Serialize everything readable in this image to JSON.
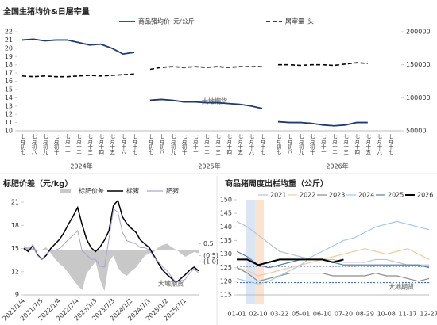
{
  "watermark": "大地期货",
  "chart_data": [
    {
      "type": "line",
      "title": "全国生猪均价&日屠宰量",
      "groups": [
        "2024年",
        "2025年",
        "2026年"
      ],
      "categories": [
        "七月初七",
        "七月初八",
        "七月初九",
        "七月初十",
        "七月十一",
        "七月十二",
        "七月十三",
        "七月十四",
        "七月十五",
        "七月十六",
        "七月十七",
        "七月初七",
        "七月初八",
        "七月初九",
        "七月初十",
        "七月十一",
        "七月十二",
        "七月十三",
        "七月十四",
        "七月十五",
        "七月十六",
        "七月十七",
        "七月初七",
        "七月初八",
        "七月初九",
        "七月初十",
        "七月十一",
        "七月十二",
        "七月十三",
        "七月十四",
        "七月十五",
        "七月十六",
        "七月十七"
      ],
      "series": [
        {
          "name": "商品猪均价_元/公斤",
          "color": "#1f3a6e",
          "dash": false,
          "values": [
            21.0,
            21.1,
            20.9,
            21.0,
            21.0,
            20.7,
            20.4,
            20.5,
            20.0,
            19.3,
            19.5,
            13.7,
            13.8,
            13.7,
            13.5,
            13.5,
            13.4,
            13.4,
            13.3,
            13.2,
            13.0,
            12.7,
            11.1,
            11.0,
            11.0,
            10.9,
            10.7,
            10.6,
            10.7,
            11.0,
            11.0,
            null,
            null
          ]
        },
        {
          "name": "屠宰量_头",
          "color": "#000000",
          "dash": true,
          "axis": "y2",
          "values": [
            133000,
            132000,
            133000,
            132000,
            132000,
            133000,
            134000,
            133000,
            134000,
            135000,
            136000,
            143000,
            146000,
            147000,
            146000,
            147000,
            146000,
            147000,
            146000,
            147000,
            147000,
            147000,
            150000,
            150000,
            149000,
            150000,
            150000,
            149000,
            151000,
            153000,
            152000,
            null,
            null
          ]
        }
      ],
      "ylim": [
        10,
        22
      ],
      "yticks": [
        10,
        11,
        12,
        13,
        14,
        15,
        16,
        17,
        18,
        19,
        20,
        21,
        22
      ],
      "y2lim": [
        50000,
        200000
      ],
      "y2ticks": [
        50000,
        100000,
        150000,
        200000
      ]
    },
    {
      "type": "line",
      "title": "标肥价差（元/kg）",
      "categories": [
        "2021/1/4",
        null,
        null,
        null,
        "2021/7/5",
        null,
        null,
        null,
        "2022/1/4",
        null,
        null,
        null,
        "2022/7/4",
        null,
        null,
        null,
        "2023/1/3",
        null,
        null,
        null,
        "2023/7/3",
        null,
        null,
        null,
        "2024/1/2",
        null,
        null,
        null,
        "2024/7/1",
        null,
        null,
        null,
        "2025/1/2",
        null,
        null,
        null,
        "2025/7/1",
        null,
        null,
        null
      ],
      "series": [
        {
          "name": "标肥价差",
          "color": "#c8c8c8",
          "style": "area",
          "axis": "y2",
          "values": [
            0.3,
            0.2,
            0.1,
            -0.1,
            0,
            0.2,
            -0.3,
            -0.8,
            -1.2,
            -1.5,
            -2.0,
            -2.5,
            -3.0,
            -3.4,
            -2.0,
            -1.5,
            -1.0,
            -2.5,
            -3.5,
            -1.0,
            -0.5,
            -1.5,
            -2.0,
            -2.2,
            -1.8,
            -1.5,
            -1.0,
            -0.5,
            -0.3,
            -0.2,
            0.2,
            0.4,
            0.5,
            0.2,
            0,
            -0.3,
            -0.6,
            -0.4,
            -0.2,
            -0.3
          ]
        },
        {
          "name": "标猪",
          "color": "#000000",
          "values": [
            15,
            14.6,
            15.4,
            14.2,
            13.6,
            14.1,
            15,
            15.6,
            16.2,
            17.1,
            18.2,
            19.2,
            20.3,
            18.1,
            16.2,
            15.1,
            14.6,
            15.2,
            16.1,
            17.3,
            20.6,
            21.2,
            19.1,
            18.2,
            17.6,
            17.1,
            16.1,
            15.6,
            15.1,
            14.1,
            13.1,
            12.2,
            11.6,
            11.1,
            10.6,
            11.1,
            11.6,
            12.2,
            12.6,
            12.1
          ]
        },
        {
          "name": "肥猪",
          "color": "#a9a3d6",
          "values": [
            15.3,
            14.8,
            15.5,
            14.1,
            13.6,
            14.3,
            14.7,
            14.8,
            15.0,
            15.6,
            16.2,
            16.7,
            17.3,
            14.7,
            14.2,
            13.6,
            13.6,
            12.7,
            12.6,
            16.3,
            20.1,
            19.7,
            17.1,
            16.0,
            15.8,
            15.6,
            15.1,
            15.1,
            14.8,
            13.9,
            13.3,
            12.6,
            12.1,
            11.3,
            10.6,
            10.8,
            11.0,
            11.8,
            12.4,
            11.8
          ]
        }
      ],
      "ylim": [
        9,
        21
      ],
      "yticks": [
        9,
        12,
        15,
        18,
        21
      ],
      "y2lim": [
        -3.8,
        4
      ],
      "y2ticks": [
        {
          "value": 0.5,
          "label": "0.5"
        },
        {
          "value": -0.5,
          "label": "(0.5)"
        },
        {
          "value": -1.0,
          "label": "(1.0)"
        }
      ]
    },
    {
      "type": "line",
      "title": "商品猪周度出栏均重（公斤）",
      "categories": [
        "01-01",
        null,
        "02-10",
        null,
        "03-22",
        null,
        "05-01",
        null,
        "06-10",
        null,
        "07-20",
        null,
        "08-29",
        null,
        "10-08",
        null,
        "11-17",
        null,
        "12-27"
      ],
      "series": [
        {
          "name": "2021",
          "color": "#b8c4d6",
          "values": [
            142,
            140,
            137,
            134,
            131,
            130,
            129,
            128,
            128,
            128,
            127,
            127,
            127,
            128,
            128,
            127,
            126,
            126,
            126
          ]
        },
        {
          "name": "2022",
          "color": "#f6c8a0",
          "values": [
            125,
            124,
            122,
            123,
            124,
            125,
            126,
            127,
            128,
            129,
            130,
            131,
            132,
            131,
            130,
            131,
            132,
            130,
            128
          ]
        },
        {
          "name": "2023",
          "color": "#8c8c8c",
          "values": [
            125,
            123,
            120,
            121,
            122,
            123,
            123,
            123,
            123,
            122,
            122,
            122,
            122,
            123,
            122,
            122,
            121,
            120,
            121
          ]
        },
        {
          "name": "2024",
          "color": "#a7c7e7",
          "values": [
            121,
            120,
            119,
            120,
            122,
            124,
            126,
            129,
            131,
            133,
            135,
            136,
            138,
            140,
            141,
            142,
            141,
            140,
            139
          ]
        },
        {
          "name": "2025",
          "color": "#5b7ea8",
          "values": [
            131,
            129,
            126,
            125,
            126,
            127,
            128,
            128,
            128,
            127,
            126,
            126,
            126,
            126,
            126,
            126,
            126,
            126,
            125
          ]
        },
        {
          "name": "2026",
          "color": "#000000",
          "values": [
            128,
            128,
            126,
            127,
            128,
            128,
            128,
            128,
            128,
            127,
            128,
            null,
            null,
            null,
            null,
            null,
            null,
            null,
            null
          ]
        }
      ],
      "reference_lines": [
        125.5,
        119.5
      ],
      "ylim": [
        115,
        150
      ],
      "yticks": [
        115,
        120,
        125,
        130,
        135,
        140,
        145,
        150
      ]
    }
  ]
}
